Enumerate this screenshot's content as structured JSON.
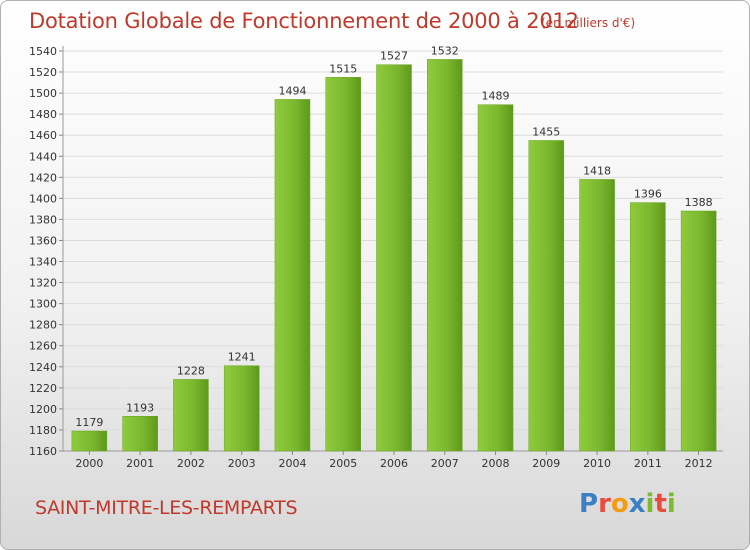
{
  "header": {
    "title": "Dotation Globale de Fonctionnement de 2000 à 2012",
    "subtitle": "(en milliers d'€)"
  },
  "footer": {
    "commune": "SAINT-MITRE-LES-REMPARTS",
    "brand_letters": [
      "P",
      "r",
      "o",
      "x",
      "i",
      "t",
      "i"
    ],
    "brand_colors": [
      "#3a7fc4",
      "#e74c3c",
      "#f39c12",
      "#3a7fc4",
      "#7dbb2e",
      "#e74c3c",
      "#7dbb2e"
    ]
  },
  "chart_data": {
    "type": "bar",
    "categories": [
      "2000",
      "2001",
      "2002",
      "2003",
      "2004",
      "2005",
      "2006",
      "2007",
      "2008",
      "2009",
      "2010",
      "2011",
      "2012"
    ],
    "values": [
      1179,
      1193,
      1228,
      1241,
      1494,
      1515,
      1527,
      1532,
      1489,
      1455,
      1418,
      1396,
      1388
    ],
    "yticks": [
      1160,
      1180,
      1200,
      1220,
      1240,
      1260,
      1280,
      1300,
      1320,
      1340,
      1360,
      1380,
      1400,
      1420,
      1440,
      1460,
      1480,
      1500,
      1520,
      1540
    ],
    "ylim": [
      1160,
      1540
    ],
    "grid": true,
    "bar_color": "#7cb82f",
    "bar_color_dark": "#5e9a1a"
  }
}
